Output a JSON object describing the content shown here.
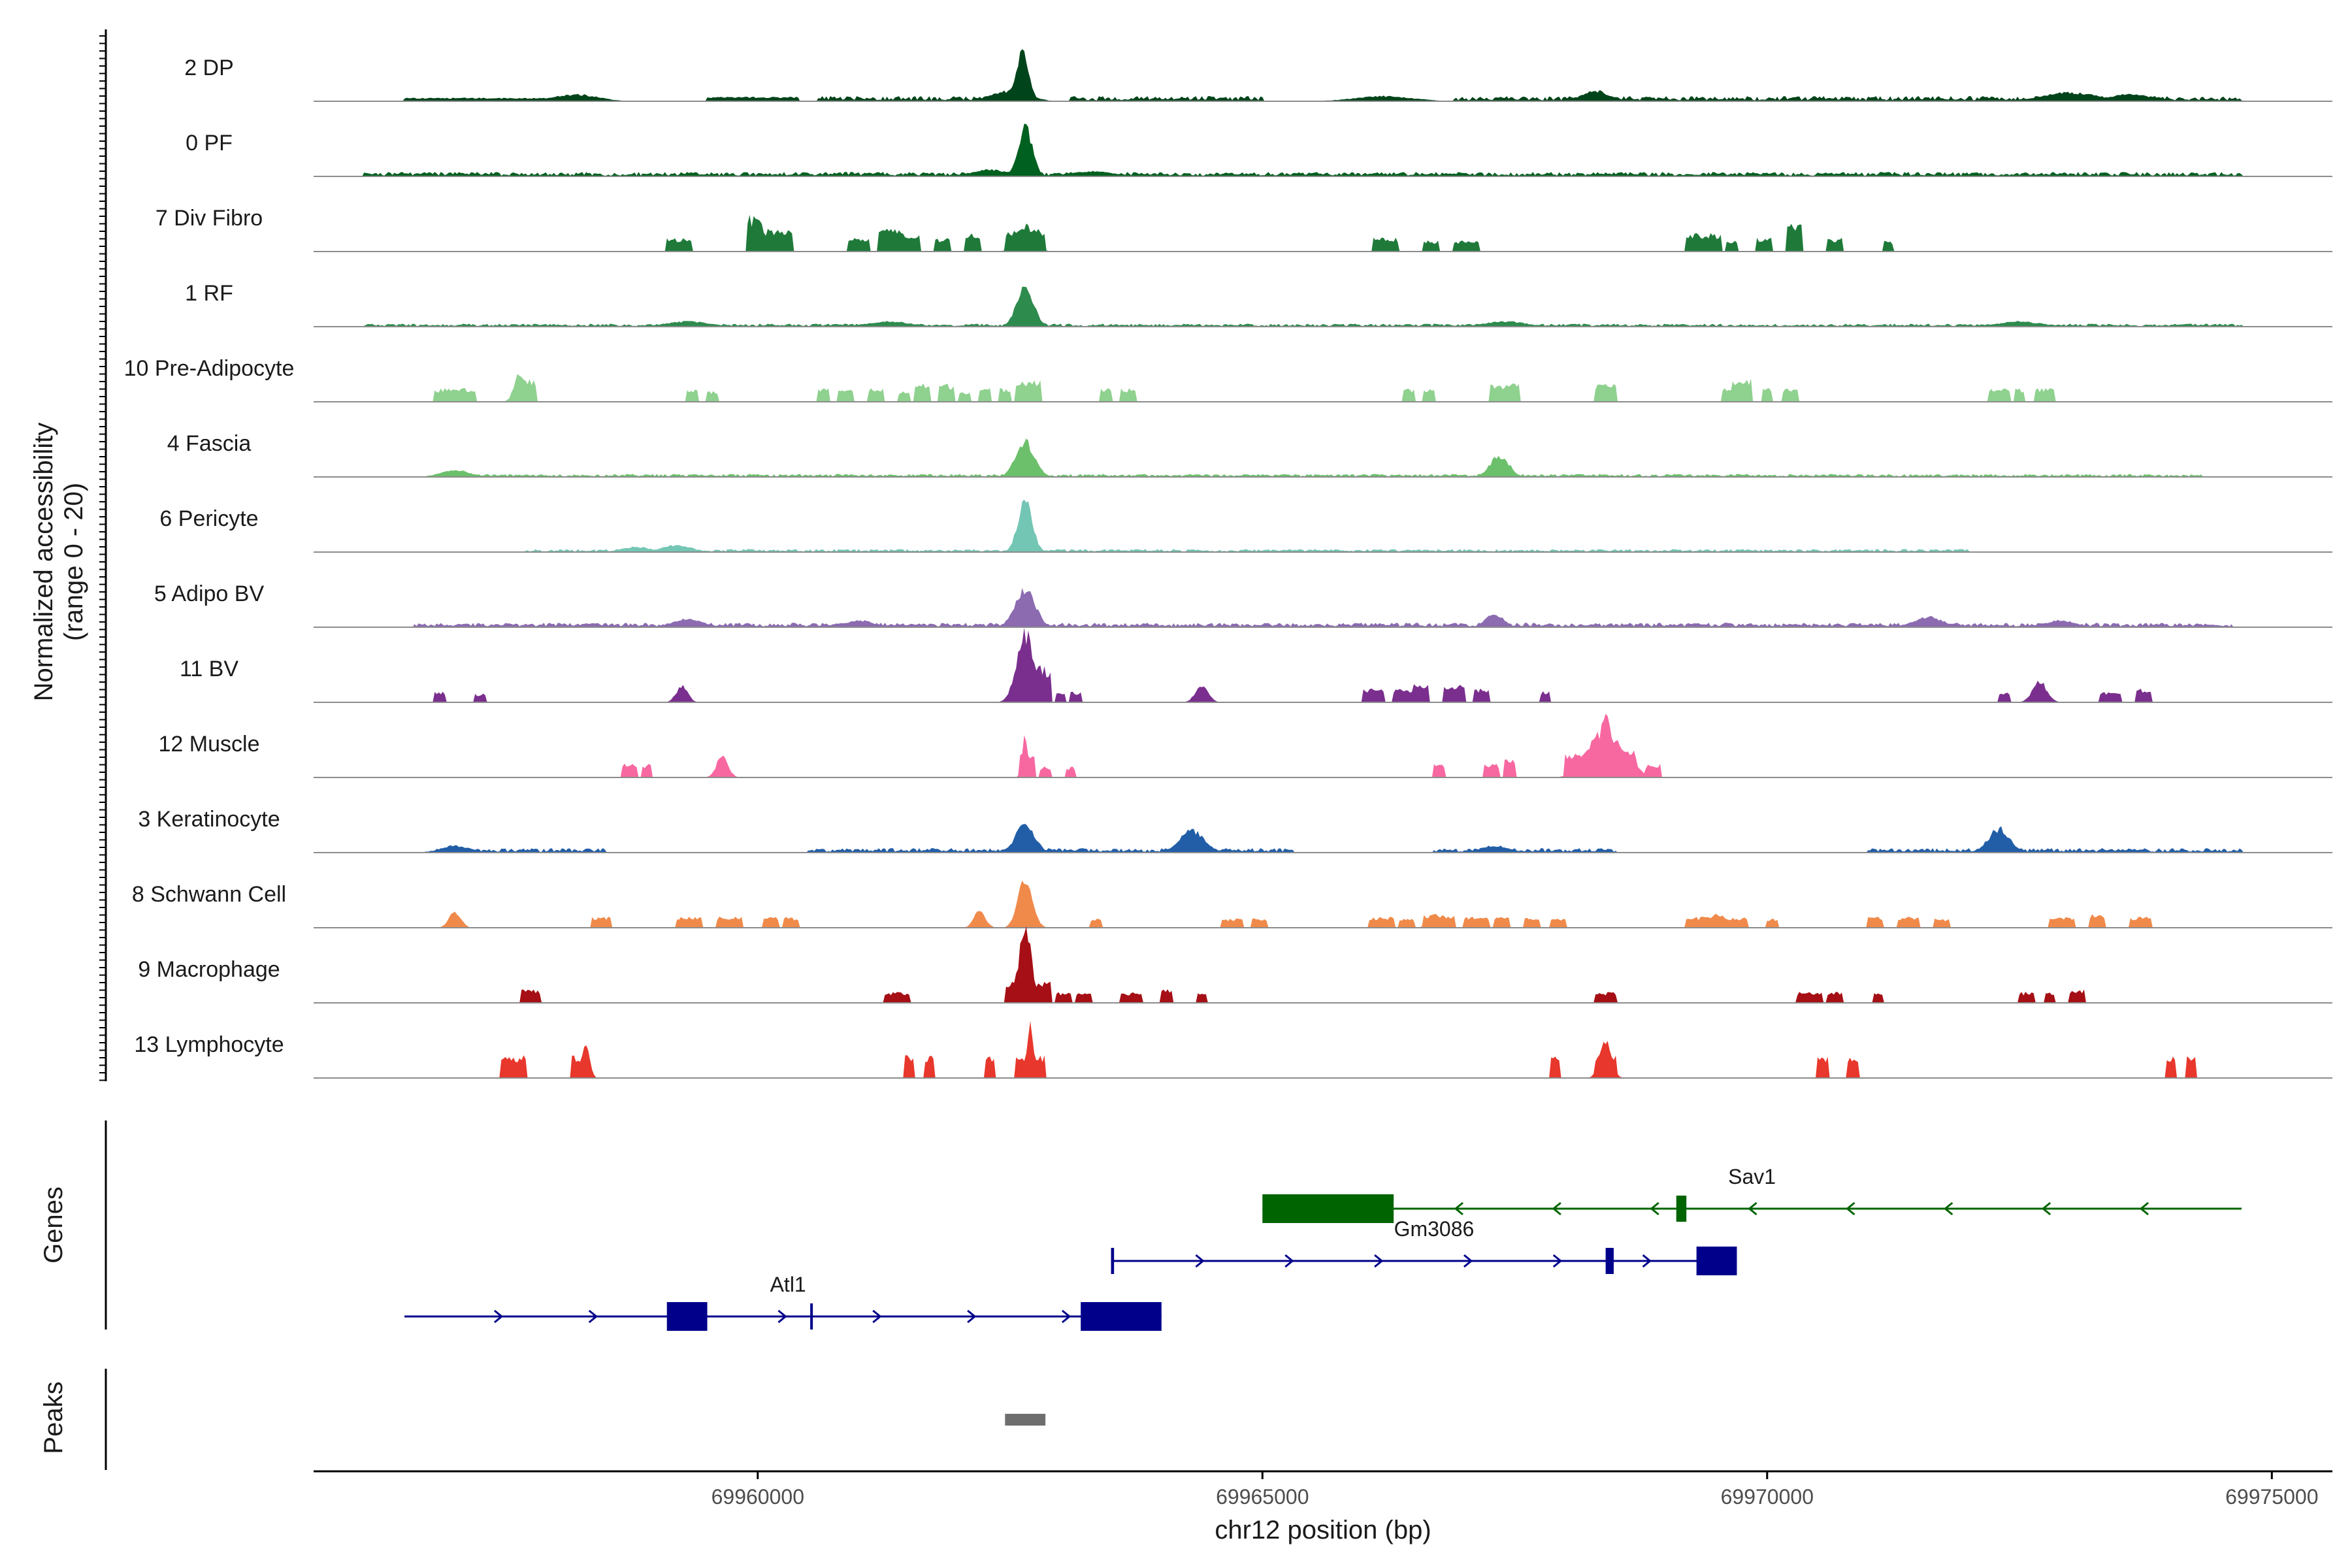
{
  "chart_data": {
    "type": "area",
    "chrom": "chr12",
    "xlabel": "chr12 position (bp)",
    "xlim": [
      69955600,
      69975600
    ],
    "x_ticks": [
      69960000,
      69965000,
      69970000,
      69975000
    ],
    "x_tick_labels": [
      "69960000",
      "69965000",
      "69970000",
      "69975000"
    ],
    "ylabel": "Normalized accessibility\n(range 0 - 20)",
    "ylim": [
      0,
      20
    ],
    "panel_labels": {
      "genes": "Genes",
      "peaks": "Peaks"
    },
    "series": [
      {
        "name": "2 DP",
        "color": "#00441b",
        "background": 0.35,
        "noise": [
          [
            69960600,
            69962500
          ],
          [
            69963100,
            69965000
          ],
          [
            69966900,
            69974700
          ]
        ],
        "peaks": [
          [
            69962620,
            5.5,
            90
          ],
          [
            69962500,
            1.2,
            250
          ],
          [
            69958200,
            0.8,
            300
          ],
          [
            69966200,
            0.6,
            400
          ],
          [
            69968300,
            1.2,
            200
          ],
          [
            69973000,
            1.0,
            400
          ],
          [
            69973600,
            0.8,
            300
          ]
        ],
        "segments": [
          [
            69959500,
            69960400,
            0.5
          ],
          [
            69956500,
            69958400,
            0.4
          ]
        ]
      },
      {
        "name": "0 PF",
        "color": "#00601f",
        "background": 0.3,
        "noise": [
          [
            69956100,
            69974700
          ]
        ],
        "peaks": [
          [
            69962650,
            6.0,
            100
          ],
          [
            69962300,
            0.8,
            250
          ],
          [
            69963300,
            0.6,
            300
          ]
        ],
        "segments": []
      },
      {
        "name": "7 Div Fibro",
        "color": "#1f7a3a",
        "background": 0,
        "noise": [],
        "peaks": [
          [
            69962650,
            3.0,
            120
          ]
        ],
        "segments": [
          [
            69959100,
            69959350,
            1.5
          ],
          [
            69959900,
            69960050,
            4.0
          ],
          [
            69960050,
            69960350,
            2.5
          ],
          [
            69960900,
            69961100,
            1.5
          ],
          [
            69961200,
            69961450,
            2.5
          ],
          [
            69961450,
            69961600,
            1.8
          ],
          [
            69961750,
            69961900,
            1.5
          ],
          [
            69962050,
            69962200,
            2.0
          ],
          [
            69962450,
            69962850,
            2.5
          ],
          [
            69966100,
            69966350,
            1.5
          ],
          [
            69966600,
            69966750,
            1.2
          ],
          [
            69966900,
            69967150,
            1.2
          ],
          [
            69969200,
            69969550,
            2.0
          ],
          [
            69969600,
            69969700,
            1.2
          ],
          [
            69969900,
            69970050,
            1.5
          ],
          [
            69970200,
            69970350,
            3.0
          ],
          [
            69970600,
            69970750,
            1.5
          ],
          [
            69971150,
            69971250,
            1.2
          ]
        ]
      },
      {
        "name": "1 RF",
        "color": "#2e8b4e",
        "background": 0.2,
        "noise": [
          [
            69956100,
            69974700
          ]
        ],
        "peaks": [
          [
            69962650,
            4.5,
            120
          ],
          [
            69959300,
            0.6,
            300
          ],
          [
            69961300,
            0.6,
            300
          ],
          [
            69967400,
            0.6,
            300
          ],
          [
            69972500,
            0.6,
            300
          ]
        ],
        "segments": []
      },
      {
        "name": "10 Pre-Adipocyte",
        "color": "#8fd18f",
        "background": 0,
        "noise": [],
        "peaks": [
          [
            69957650,
            3.5,
            80
          ]
        ],
        "segments": [
          [
            69956800,
            69957200,
            1.5
          ],
          [
            69957600,
            69957800,
            2.5
          ],
          [
            69959300,
            69959400,
            1.5
          ],
          [
            69959500,
            69959600,
            1.2
          ],
          [
            69960600,
            69960700,
            1.5
          ],
          [
            69960800,
            69960950,
            1.5
          ],
          [
            69961100,
            69961250,
            1.5
          ],
          [
            69961400,
            69961500,
            1.2
          ],
          [
            69961550,
            69961700,
            2.0
          ],
          [
            69961800,
            69961950,
            2.0
          ],
          [
            69962000,
            69962100,
            1.2
          ],
          [
            69962200,
            69962300,
            1.5
          ],
          [
            69962400,
            69962500,
            1.5
          ],
          [
            69962550,
            69962800,
            2.5
          ],
          [
            69963400,
            69963500,
            1.5
          ],
          [
            69963600,
            69963750,
            1.5
          ],
          [
            69966400,
            69966500,
            1.5
          ],
          [
            69966600,
            69966700,
            1.5
          ],
          [
            69967250,
            69967550,
            2.0
          ],
          [
            69968300,
            69968500,
            2.0
          ],
          [
            69969550,
            69969700,
            1.5
          ],
          [
            69969650,
            69969850,
            2.5
          ],
          [
            69969950,
            69970050,
            1.5
          ],
          [
            69970150,
            69970300,
            1.5
          ],
          [
            69972200,
            69972400,
            1.5
          ],
          [
            69972450,
            69972550,
            1.5
          ],
          [
            69972650,
            69972850,
            1.5
          ]
        ]
      },
      {
        "name": "4 Fascia",
        "color": "#6cc06c",
        "background": 0.2,
        "noise": [
          [
            69956800,
            69974300
          ]
        ],
        "peaks": [
          [
            69962650,
            4.0,
            130
          ],
          [
            69967350,
            2.5,
            130
          ],
          [
            69957000,
            0.8,
            200
          ]
        ],
        "segments": []
      },
      {
        "name": "6 Pericyte",
        "color": "#74c6b4",
        "background": 0.2,
        "noise": [
          [
            69957700,
            69972000
          ]
        ],
        "peaks": [
          [
            69962650,
            6.0,
            100
          ],
          [
            69959200,
            0.8,
            200
          ],
          [
            69958800,
            0.6,
            200
          ]
        ],
        "segments": []
      },
      {
        "name": "5 Adipo BV",
        "color": "#8c6bb1",
        "background": 0.3,
        "noise": [
          [
            69956600,
            69974600
          ]
        ],
        "peaks": [
          [
            69962650,
            4.5,
            140
          ],
          [
            69967300,
            1.6,
            120
          ],
          [
            69959300,
            1.0,
            200
          ],
          [
            69961000,
            0.8,
            200
          ],
          [
            69971600,
            1.2,
            200
          ],
          [
            69972900,
            0.8,
            200
          ]
        ],
        "segments": []
      },
      {
        "name": "11 BV",
        "color": "#7a2f8e",
        "background": 0,
        "noise": [],
        "peaks": [
          [
            69962650,
            8.0,
            120
          ],
          [
            69959250,
            2.0,
            80
          ],
          [
            69964400,
            2.0,
            90
          ],
          [
            69972700,
            2.5,
            100
          ]
        ],
        "segments": [
          [
            69956800,
            69956900,
            1.2
          ],
          [
            69957200,
            69957300,
            1.0
          ],
          [
            69962700,
            69962900,
            4.0
          ],
          [
            69962950,
            69963050,
            1.2
          ],
          [
            69963100,
            69963200,
            1.2
          ],
          [
            69966000,
            69966200,
            1.5
          ],
          [
            69966300,
            69966500,
            1.5
          ],
          [
            69966500,
            69966650,
            2.0
          ],
          [
            69966800,
            69967000,
            2.0
          ],
          [
            69967100,
            69967250,
            1.5
          ],
          [
            69967750,
            69967850,
            1.2
          ],
          [
            69972300,
            69972400,
            1.2
          ],
          [
            69973300,
            69973500,
            1.2
          ],
          [
            69973650,
            69973800,
            1.5
          ]
        ]
      },
      {
        "name": "12 Muscle",
        "color": "#f768a1",
        "background": 0,
        "noise": [],
        "peaks": [
          [
            69962650,
            5.0,
            40
          ],
          [
            69959650,
            2.5,
            80
          ],
          [
            69968400,
            7.0,
            90
          ],
          [
            69968350,
            5.0,
            200
          ],
          [
            69968500,
            4.0,
            200
          ]
        ],
        "segments": [
          [
            69958650,
            69958800,
            1.5
          ],
          [
            69958850,
            69958950,
            1.5
          ],
          [
            69962600,
            69962750,
            2.5
          ],
          [
            69962800,
            69962900,
            1.2
          ],
          [
            69963050,
            69963150,
            1.2
          ],
          [
            69966700,
            69966800,
            1.5
          ],
          [
            69967200,
            69967350,
            1.5
          ],
          [
            69967400,
            69967500,
            2.0
          ],
          [
            69968000,
            69968700,
            3.0
          ],
          [
            69968800,
            69968950,
            1.5
          ]
        ]
      },
      {
        "name": "3 Keratinocyte",
        "color": "#225ea8",
        "background": 0.3,
        "noise": [
          [
            69956800,
            69958500
          ],
          [
            69960500,
            69965300
          ],
          [
            69966700,
            69968500
          ],
          [
            69971000,
            69974700
          ]
        ],
        "peaks": [
          [
            69962650,
            3.5,
            130
          ],
          [
            69964300,
            2.5,
            180
          ],
          [
            69972300,
            2.8,
            150
          ],
          [
            69967300,
            0.8,
            200
          ],
          [
            69957000,
            0.8,
            200
          ]
        ],
        "segments": []
      },
      {
        "name": "8 Schwann Cell",
        "color": "#f08a4b",
        "background": 0,
        "noise": [],
        "peaks": [
          [
            69962650,
            5.5,
            100
          ],
          [
            69957000,
            2.0,
            80
          ],
          [
            69962200,
            2.0,
            80
          ],
          [
            69966700,
            1.5,
            80
          ],
          [
            69969500,
            1.5,
            150
          ]
        ],
        "segments": [
          [
            69958350,
            69958550,
            1.2
          ],
          [
            69959200,
            69959450,
            1.2
          ],
          [
            69959600,
            69959850,
            1.2
          ],
          [
            69960050,
            69960200,
            1.2
          ],
          [
            69960250,
            69960400,
            1.2
          ],
          [
            69963300,
            69963400,
            1.0
          ],
          [
            69964600,
            69964800,
            1.0
          ],
          [
            69964900,
            69965050,
            1.0
          ],
          [
            69966050,
            69966300,
            1.2
          ],
          [
            69966350,
            69966500,
            1.0
          ],
          [
            69966600,
            69966900,
            1.5
          ],
          [
            69967000,
            69967250,
            1.2
          ],
          [
            69967300,
            69967450,
            1.2
          ],
          [
            69967600,
            69967750,
            1.2
          ],
          [
            69967850,
            69968000,
            1.0
          ],
          [
            69969200,
            69969800,
            1.2
          ],
          [
            69970000,
            69970100,
            1.0
          ],
          [
            69971000,
            69971150,
            1.2
          ],
          [
            69971300,
            69971500,
            1.2
          ],
          [
            69971650,
            69971800,
            1.0
          ],
          [
            69972800,
            69973050,
            1.2
          ],
          [
            69973200,
            69973350,
            1.5
          ],
          [
            69973600,
            69973800,
            1.2
          ]
        ]
      },
      {
        "name": "9 Macrophage",
        "color": "#a50f15",
        "background": 0,
        "noise": [],
        "peaks": [
          [
            69962650,
            8.5,
            90
          ]
        ],
        "segments": [
          [
            69957650,
            69957850,
            1.5
          ],
          [
            69961250,
            69961500,
            1.2
          ],
          [
            69962450,
            69962900,
            2.5
          ],
          [
            69962950,
            69963100,
            1.2
          ],
          [
            69963150,
            69963300,
            1.2
          ],
          [
            69963600,
            69963800,
            1.2
          ],
          [
            69964000,
            69964100,
            1.5
          ],
          [
            69964350,
            69964450,
            1.2
          ],
          [
            69968300,
            69968500,
            1.2
          ],
          [
            69970300,
            69970550,
            1.2
          ],
          [
            69970600,
            69970750,
            1.2
          ],
          [
            69971050,
            69971150,
            1.2
          ],
          [
            69972500,
            69972650,
            1.2
          ],
          [
            69972750,
            69972850,
            1.2
          ],
          [
            69973000,
            69973150,
            1.5
          ]
        ]
      },
      {
        "name": "13 Lymphocyte",
        "color": "#e8372c",
        "background": 0,
        "noise": [],
        "peaks": [
          [
            69958300,
            4.5,
            50
          ],
          [
            69962700,
            7.0,
            40
          ],
          [
            69968400,
            4.5,
            80
          ]
        ],
        "segments": [
          [
            69957450,
            69957700,
            2.5
          ],
          [
            69958150,
            69958350,
            2.5
          ],
          [
            69961450,
            69961550,
            2.5
          ],
          [
            69961650,
            69961750,
            2.5
          ],
          [
            69962250,
            69962350,
            2.5
          ],
          [
            69962550,
            69962850,
            2.5
          ],
          [
            69967850,
            69967950,
            2.5
          ],
          [
            69968300,
            69968500,
            2.5
          ],
          [
            69970500,
            69970600,
            2.5
          ],
          [
            69970800,
            69970900,
            2.5
          ],
          [
            69973950,
            69974050,
            2.5
          ],
          [
            69974150,
            69974250,
            2.5
          ]
        ]
      }
    ],
    "genes": [
      {
        "name": "Sav1",
        "strand": "-",
        "start": 69965000,
        "end": 69974700,
        "row": 0,
        "color": "#006400",
        "exons": [
          [
            69965000,
            69966300
          ],
          [
            69969100,
            69969200
          ]
        ],
        "label_x": 69969850
      },
      {
        "name": "Gm3086",
        "strand": "+",
        "start": 69963500,
        "end": 69969700,
        "row": 1,
        "color": "#00008b",
        "exons": [
          [
            69963500,
            69963530
          ],
          [
            69968400,
            69968480
          ],
          [
            69969300,
            69969700
          ]
        ],
        "label_x": 69966700
      },
      {
        "name": "Atl1",
        "strand": "+",
        "start": 69956500,
        "end": 69964000,
        "row": 2,
        "color": "#00008b",
        "exons": [
          [
            69959100,
            69959500
          ],
          [
            69960520,
            69960540
          ],
          [
            69963200,
            69964000
          ]
        ],
        "label_x": 69960300
      }
    ],
    "peaks": [
      [
        69962450,
        69962850
      ]
    ]
  }
}
